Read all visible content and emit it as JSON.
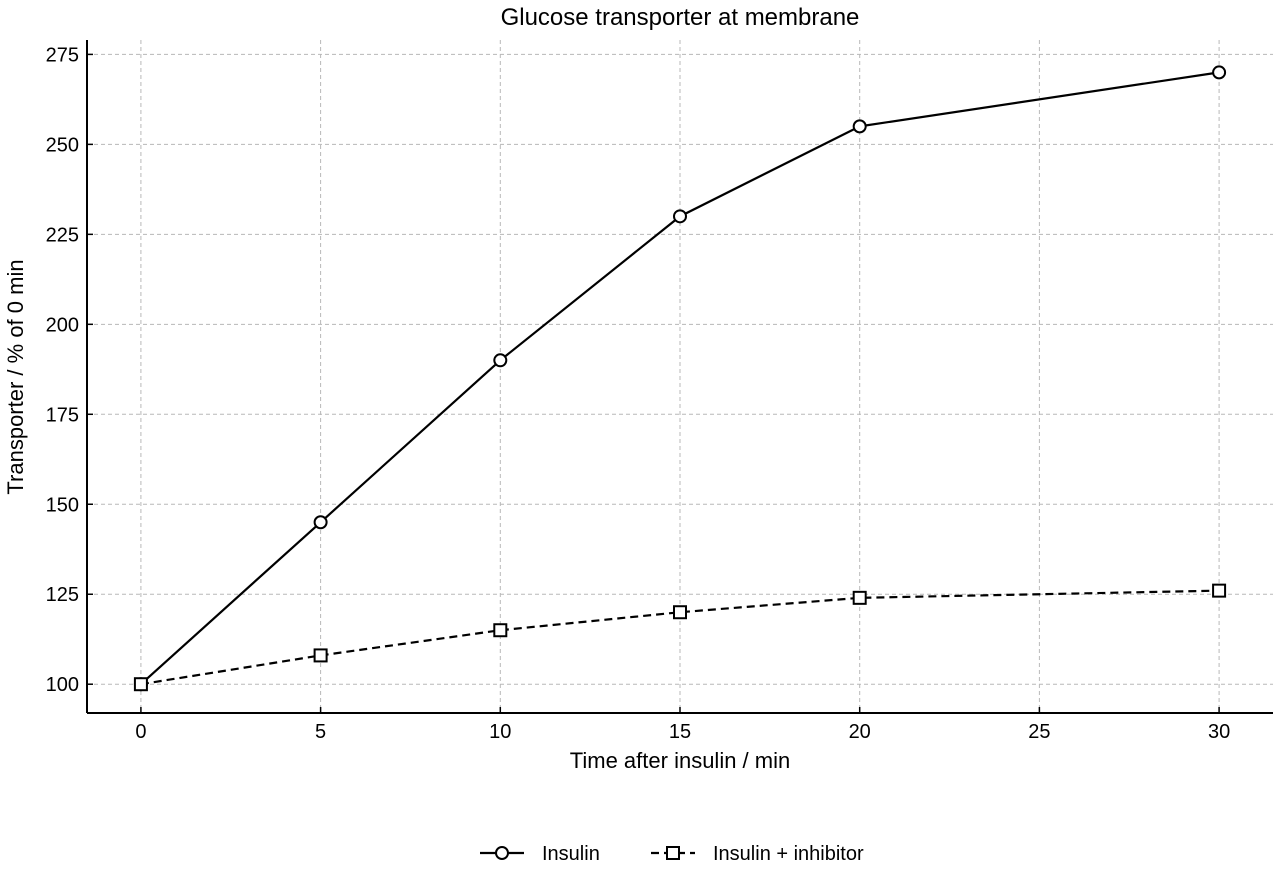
{
  "chart_data": {
    "type": "line",
    "title": "Glucose transporter at membrane",
    "xlabel": "Time after insulin / min",
    "ylabel": "Transporter / % of 0 min",
    "xlim": [
      -1.5,
      31.5
    ],
    "ylim": [
      92,
      279
    ],
    "xticks": [
      0,
      5,
      10,
      15,
      20,
      25,
      30
    ],
    "yticks": [
      100,
      125,
      150,
      175,
      200,
      225,
      250,
      275
    ],
    "grid": true,
    "legend_position": "bottom-center",
    "series": [
      {
        "name": "Insulin",
        "x": [
          0,
          5,
          10,
          15,
          20,
          30
        ],
        "values": [
          100,
          145,
          190,
          230,
          255,
          270
        ],
        "line_style": "solid",
        "marker": "circle",
        "color": "#000000"
      },
      {
        "name": "Insulin + inhibitor",
        "x": [
          0,
          5,
          10,
          15,
          20,
          30
        ],
        "values": [
          100,
          108,
          115,
          120,
          124,
          126
        ],
        "line_style": "dashed",
        "marker": "square",
        "color": "#000000"
      }
    ]
  }
}
